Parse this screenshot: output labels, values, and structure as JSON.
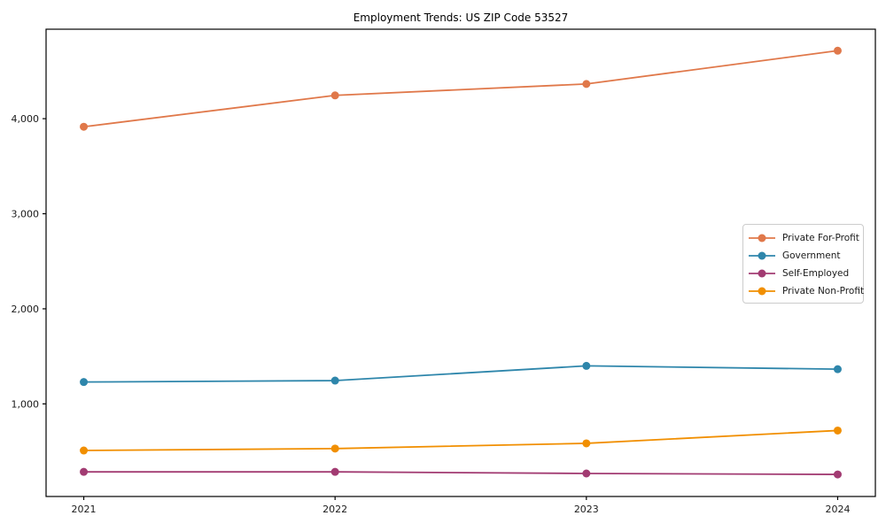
{
  "chart_data": {
    "type": "line",
    "title": "Employment Trends: US ZIP Code 53527",
    "xlabel": "",
    "ylabel": "",
    "x": [
      2021,
      2022,
      2023,
      2024
    ],
    "x_tick_labels": [
      "2021",
      "2022",
      "2023",
      "2024"
    ],
    "y_ticks": [
      1000,
      2000,
      3000,
      4000
    ],
    "y_tick_labels": [
      "1,000",
      "2,000",
      "3,000",
      "4,000"
    ],
    "xlim": [
      2020.85,
      2024.15
    ],
    "ylim": [
      26,
      4941
    ],
    "grid": false,
    "legend_position": "center right",
    "series": [
      {
        "name": "Private For-Profit",
        "color": "#E0784A",
        "values": [
          3915,
          4245,
          4365,
          4715
        ]
      },
      {
        "name": "Government",
        "color": "#2E86AB",
        "values": [
          1230,
          1245,
          1400,
          1365
        ]
      },
      {
        "name": "Self-Employed",
        "color": "#A23B72",
        "values": [
          285,
          285,
          268,
          258
        ]
      },
      {
        "name": "Private Non-Profit",
        "color": "#F18F01",
        "values": [
          510,
          530,
          585,
          720
        ]
      }
    ],
    "axis_color": "#000000",
    "tick_label_color": "#1a1a1a"
  }
}
